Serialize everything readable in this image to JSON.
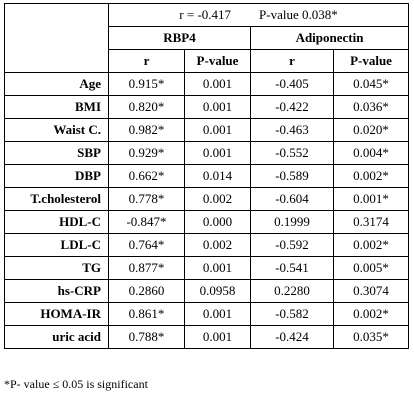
{
  "summary": {
    "r": "r = -0.417",
    "p_value": "P-value 0.038*"
  },
  "groups": [
    "RBP4",
    "Adiponectin"
  ],
  "subheaders": [
    "r",
    "P-value",
    "r",
    "P-value"
  ],
  "rows": [
    {
      "label": "Age",
      "cells": [
        "0.915*",
        "0.001",
        "-0.405",
        "0.045*"
      ]
    },
    {
      "label": "BMI",
      "cells": [
        "0.820*",
        "0.001",
        "-0.422",
        "0.036*"
      ]
    },
    {
      "label": "Waist C.",
      "cells": [
        "0.982*",
        "0.001",
        "-0.463",
        "0.020*"
      ]
    },
    {
      "label": "SBP",
      "cells": [
        "0.929*",
        "0.001",
        "-0.552",
        "0.004*"
      ]
    },
    {
      "label": "DBP",
      "cells": [
        "0.662*",
        "0.014",
        "-0.589",
        "0.002*"
      ]
    },
    {
      "label": "T.cholesterol",
      "cells": [
        "0.778*",
        "0.002",
        "-0.604",
        "0.001*"
      ]
    },
    {
      "label": "HDL-C",
      "cells": [
        "-0.847*",
        "0.000",
        "0.1999",
        "0.3174"
      ]
    },
    {
      "label": "LDL-C",
      "cells": [
        "0.764*",
        "0.002",
        "-0.592",
        "0.002*"
      ]
    },
    {
      "label": "TG",
      "cells": [
        "0.877*",
        "0.001",
        "-0.541",
        "0.005*"
      ]
    },
    {
      "label": "hs-CRP",
      "cells": [
        "0.2860",
        "0.0958",
        "0.2280",
        "0.3074"
      ]
    },
    {
      "label": "HOMA-IR",
      "cells": [
        "0.861*",
        "0.001",
        "-0.582",
        "0.002*"
      ]
    },
    {
      "label": "uric acid",
      "cells": [
        "0.788*",
        "0.001",
        "-0.424",
        "0.035*"
      ]
    }
  ],
  "footnote": "*P- value ≤ 0.05 is significant"
}
